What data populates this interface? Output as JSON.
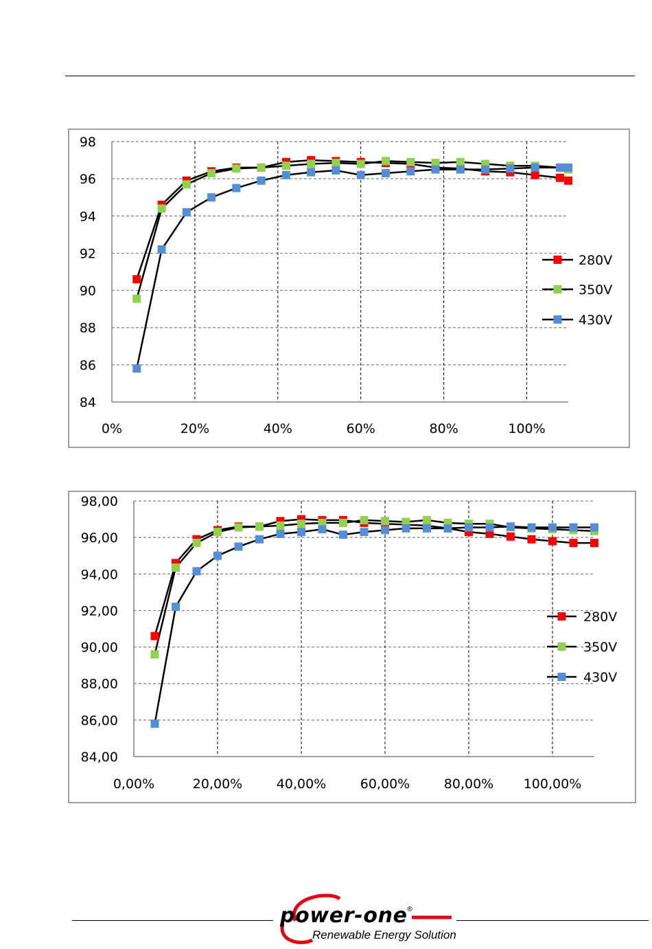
{
  "chart_data": [
    {
      "type": "line",
      "title": "",
      "xlabel": "",
      "ylabel": "",
      "xlim": [
        0,
        110
      ],
      "ylim": [
        84,
        98
      ],
      "x_ticks": [
        0,
        20,
        40,
        60,
        80,
        100
      ],
      "x_tick_labels": [
        "0%",
        "20%",
        "40%",
        "60%",
        "80%",
        "100%"
      ],
      "y_ticks": [
        84,
        86,
        88,
        90,
        92,
        94,
        96,
        98
      ],
      "y_tick_labels": [
        "84",
        "86",
        "88",
        "90",
        "92",
        "94",
        "96",
        "98"
      ],
      "grid": true,
      "legend_position": "right",
      "x": [
        6,
        12,
        18,
        24,
        30,
        36,
        42,
        48,
        54,
        60,
        66,
        72,
        78,
        84,
        90,
        96,
        102,
        108,
        110
      ],
      "series": [
        {
          "name": "280V",
          "color": "#ff0000",
          "values": [
            90.6,
            94.6,
            95.9,
            96.4,
            96.6,
            96.6,
            96.9,
            97.0,
            96.95,
            96.9,
            96.85,
            96.8,
            96.6,
            96.55,
            96.4,
            96.35,
            96.2,
            96.05,
            95.9
          ]
        },
        {
          "name": "350V",
          "color": "#92d050",
          "values": [
            89.55,
            94.4,
            95.7,
            96.3,
            96.55,
            96.6,
            96.7,
            96.8,
            96.85,
            96.8,
            96.95,
            96.9,
            96.85,
            96.9,
            96.8,
            96.7,
            96.7,
            96.6,
            96.5
          ]
        },
        {
          "name": "430V",
          "color": "#558ed5",
          "values": [
            85.8,
            92.2,
            94.2,
            95.0,
            95.5,
            95.9,
            96.2,
            96.35,
            96.45,
            96.2,
            96.3,
            96.4,
            96.5,
            96.5,
            96.5,
            96.55,
            96.6,
            96.6,
            96.6
          ]
        }
      ]
    },
    {
      "type": "line",
      "title": "",
      "xlabel": "",
      "ylabel": "",
      "xlim": [
        0,
        110
      ],
      "ylim": [
        84,
        98
      ],
      "x_ticks": [
        0,
        20,
        40,
        60,
        80,
        100
      ],
      "x_tick_labels": [
        "0,00%",
        "20,00%",
        "40,00%",
        "60,00%",
        "80,00%",
        "100,00%"
      ],
      "y_ticks": [
        84,
        86,
        88,
        90,
        92,
        94,
        96,
        98
      ],
      "y_tick_labels": [
        "84,00",
        "86,00",
        "88,00",
        "90,00",
        "92,00",
        "94,00",
        "96,00",
        "98,00"
      ],
      "grid": true,
      "legend_position": "right",
      "x": [
        5,
        10,
        15,
        20,
        25,
        30,
        35,
        40,
        45,
        50,
        55,
        60,
        65,
        70,
        75,
        80,
        85,
        90,
        95,
        100,
        105,
        110
      ],
      "series": [
        {
          "name": "280V",
          "color": "#ff0000",
          "values": [
            90.6,
            94.6,
            95.9,
            96.4,
            96.6,
            96.6,
            96.9,
            97.0,
            96.95,
            96.95,
            96.8,
            96.75,
            96.7,
            96.65,
            96.5,
            96.3,
            96.2,
            96.05,
            95.9,
            95.8,
            95.7,
            95.7
          ]
        },
        {
          "name": "350V",
          "color": "#92d050",
          "values": [
            89.6,
            94.35,
            95.7,
            96.3,
            96.55,
            96.6,
            96.65,
            96.75,
            96.8,
            96.8,
            96.95,
            96.9,
            96.85,
            96.95,
            96.8,
            96.75,
            96.75,
            96.55,
            96.5,
            96.45,
            96.4,
            96.35
          ]
        },
        {
          "name": "430V",
          "color": "#558ed5",
          "values": [
            85.8,
            92.2,
            94.15,
            95.0,
            95.5,
            95.9,
            96.2,
            96.3,
            96.45,
            96.15,
            96.3,
            96.4,
            96.5,
            96.5,
            96.5,
            96.55,
            96.55,
            96.6,
            96.55,
            96.55,
            96.55,
            96.55
          ]
        }
      ]
    }
  ],
  "footer": {
    "logo_text": "power-one",
    "logo_registered": "®",
    "tagline": "Renewable Energy Solutions",
    "brand_color": "#e30613"
  }
}
